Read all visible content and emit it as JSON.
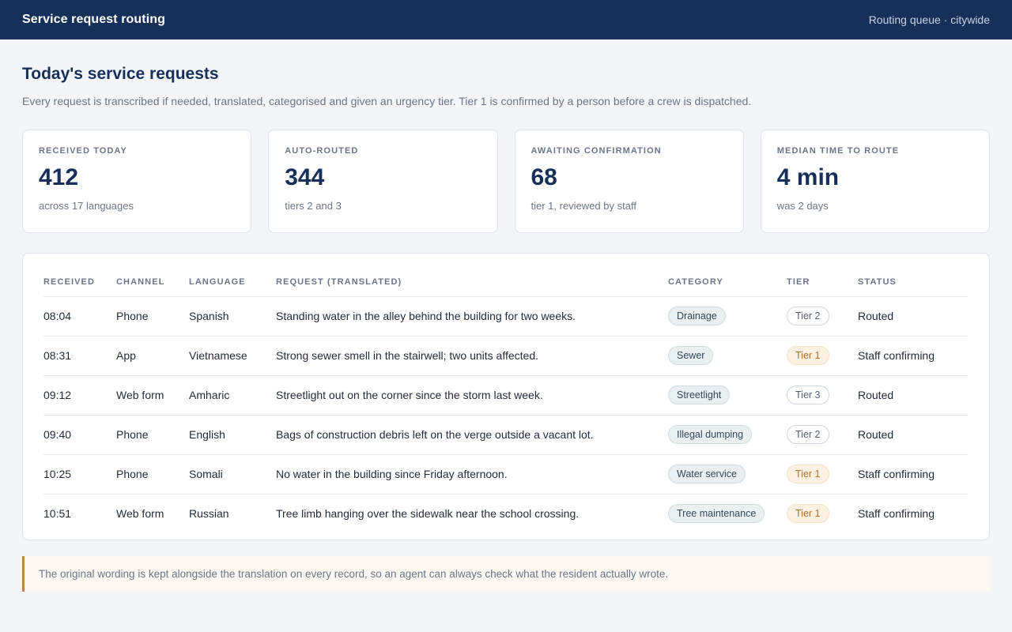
{
  "header": {
    "title": "Service request routing",
    "queue_label": "Routing queue · citywide"
  },
  "page": {
    "title": "Today's service requests",
    "subtitle": "Every request is transcribed if needed, translated, categorised and given an urgency tier. Tier 1 is confirmed by a person before a crew is dispatched."
  },
  "stats": [
    {
      "label": "RECEIVED TODAY",
      "value": "412",
      "note": "across 17 languages"
    },
    {
      "label": "AUTO-ROUTED",
      "value": "344",
      "note": "tiers 2 and 3"
    },
    {
      "label": "AWAITING CONFIRMATION",
      "value": "68",
      "note": "tier 1, reviewed by staff"
    },
    {
      "label": "MEDIAN TIME TO ROUTE",
      "value": "4 min",
      "note": "was 2 days"
    }
  ],
  "table": {
    "columns": [
      "RECEIVED",
      "CHANNEL",
      "LANGUAGE",
      "REQUEST (TRANSLATED)",
      "CATEGORY",
      "TIER",
      "STATUS"
    ],
    "rows": [
      {
        "received": "08:04",
        "channel": "Phone",
        "language": "Spanish",
        "request": "Standing water in the alley behind the building for two weeks.",
        "category": "Drainage",
        "tier": "Tier 2",
        "status": "Routed"
      },
      {
        "received": "08:31",
        "channel": "App",
        "language": "Vietnamese",
        "request": "Strong sewer smell in the stairwell; two units affected.",
        "category": "Sewer",
        "tier": "Tier 1",
        "status": "Staff confirming"
      },
      {
        "received": "09:12",
        "channel": "Web form",
        "language": "Amharic",
        "request": "Streetlight out on the corner since the storm last week.",
        "category": "Streetlight",
        "tier": "Tier 3",
        "status": "Routed"
      },
      {
        "received": "09:40",
        "channel": "Phone",
        "language": "English",
        "request": "Bags of construction debris left on the verge outside a vacant lot.",
        "category": "Illegal dumping",
        "tier": "Tier 2",
        "status": "Routed"
      },
      {
        "received": "10:25",
        "channel": "Phone",
        "language": "Somali",
        "request": "No water in the building since Friday afternoon.",
        "category": "Water service",
        "tier": "Tier 1",
        "status": "Staff confirming"
      },
      {
        "received": "10:51",
        "channel": "Web form",
        "language": "Russian",
        "request": "Tree limb hanging over the sidewalk near the school crossing.",
        "category": "Tree maintenance",
        "tier": "Tier 1",
        "status": "Staff confirming"
      }
    ]
  },
  "footnote": "The original wording is kept alongside the translation on every record, so an agent can always check what the resident actually wrote."
}
